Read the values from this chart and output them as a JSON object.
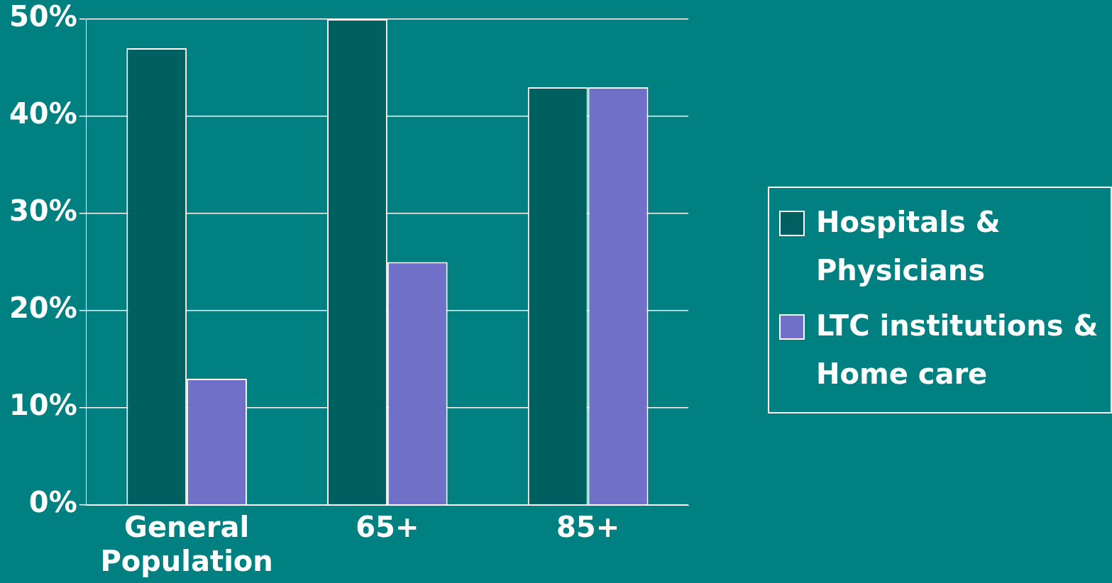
{
  "chart_data": {
    "type": "bar",
    "categories": [
      "General Population",
      "65+",
      "85+"
    ],
    "series": [
      {
        "name": "Hospitals & Physicians",
        "color": "#006060",
        "values": [
          47,
          50,
          43
        ]
      },
      {
        "name": "LTC institutions & Home care",
        "color": "#7070c8",
        "values": [
          13,
          25,
          43
        ]
      }
    ],
    "ylim": [
      0,
      50
    ],
    "yticks": [
      {
        "value": 0,
        "label": "0%"
      },
      {
        "value": 10,
        "label": "10%"
      },
      {
        "value": 20,
        "label": "20%"
      },
      {
        "value": 30,
        "label": "30%"
      },
      {
        "value": 40,
        "label": "40%"
      },
      {
        "value": 50,
        "label": "50%"
      }
    ],
    "grid": "y",
    "legend": "right"
  }
}
